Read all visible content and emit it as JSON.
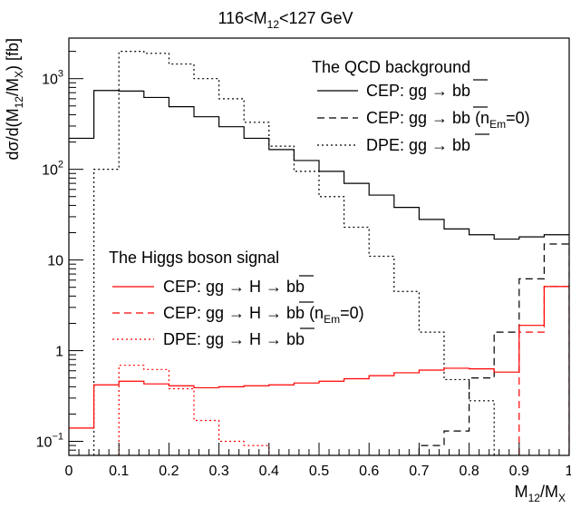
{
  "chart_data": {
    "type": "line",
    "title": "116<M12<127 GeV",
    "title_parts": {
      "base": "116<M",
      "sub": "12",
      "rest": "<127 GeV"
    },
    "xlabel": "M12/MX",
    "xlabel_parts": {
      "m": "M",
      "s1": "12",
      "slash": "/M",
      "s2": "X"
    },
    "ylabel": "dσ/d(M12/MX) [fb]",
    "ylabel_parts": {
      "a": "dσ/d(M",
      "s1": "12",
      "b": "/M",
      "s2": "X",
      "c": ") [fb]"
    },
    "xlim": [
      0,
      1
    ],
    "ylim": [
      0.07,
      2800
    ],
    "yscale": "log",
    "x_ticks": [
      "0",
      "0.1",
      "0.2",
      "0.3",
      "0.4",
      "0.5",
      "0.6",
      "0.7",
      "0.8",
      "0.9",
      "1"
    ],
    "bin_edges": [
      0,
      0.05,
      0.1,
      0.15,
      0.2,
      0.25,
      0.3,
      0.35,
      0.4,
      0.45,
      0.5,
      0.55,
      0.6,
      0.65,
      0.7,
      0.75,
      0.8,
      0.85,
      0.9,
      0.95,
      1
    ],
    "series": [
      {
        "group": "bkg",
        "label": "CEP: gg → bb̄",
        "color": "#000000",
        "dash": "solid",
        "values": [
          220,
          740,
          730,
          620,
          490,
          380,
          295,
          220,
          165,
          125,
          95,
          70,
          52,
          38,
          28,
          22,
          19,
          17,
          18,
          19
        ]
      },
      {
        "group": "bkg",
        "label": "CEP: gg → bb̄ (nEm=0)",
        "color": "#000000",
        "dash": "dashed",
        "values": [
          0,
          0,
          0,
          0,
          0,
          0,
          0,
          0,
          0,
          0,
          0,
          0,
          0,
          0,
          0.09,
          0.13,
          0.5,
          1.6,
          6.2,
          15
        ]
      },
      {
        "group": "bkg",
        "label": "DPE: gg → bb̄",
        "color": "#000000",
        "dash": "dotted",
        "values": [
          0,
          100,
          2000,
          1900,
          1450,
          1000,
          600,
          330,
          180,
          95,
          50,
          23,
          11,
          4.5,
          1.6,
          0.48,
          0.28,
          0,
          0,
          0
        ]
      },
      {
        "group": "sig",
        "label": "CEP: gg → H → bb̄",
        "color": "#ff0000",
        "dash": "solid",
        "values": [
          0.14,
          0.42,
          0.46,
          0.43,
          0.41,
          0.39,
          0.4,
          0.41,
          0.42,
          0.44,
          0.46,
          0.49,
          0.53,
          0.57,
          0.61,
          0.64,
          0.63,
          0.58,
          1.9,
          5.1
        ]
      },
      {
        "group": "sig",
        "label": "CEP: gg → H → bb̄ (nEm=0)",
        "color": "#ff0000",
        "dash": "dashed",
        "values": [
          0,
          0,
          0,
          0,
          0,
          0,
          0,
          0,
          0,
          0,
          0,
          0,
          0,
          0,
          0,
          0,
          0,
          0,
          1.6,
          5.1
        ]
      },
      {
        "group": "sig",
        "label": "DPE: gg → H → bb̄",
        "color": "#ff0000",
        "dash": "dotted",
        "values": [
          0,
          0,
          0.69,
          0.62,
          0.38,
          0.17,
          0.1,
          0.09,
          0,
          0,
          0,
          0,
          0,
          0,
          0,
          0,
          0,
          0,
          0,
          0
        ]
      }
    ],
    "legend_bkg": {
      "header": "The QCD background",
      "entries": [
        {
          "text": "CEP: gg → bb",
          "suffix": ""
        },
        {
          "text": "CEP: gg → bb",
          "suffix": "(n",
          "sub": "Em",
          "tail": "=0)"
        },
        {
          "text": "DPE: gg → bb",
          "suffix": ""
        }
      ]
    },
    "legend_sig": {
      "header": "The Higgs boson signal",
      "entries": [
        {
          "text": "CEP: gg → H → bb",
          "suffix": ""
        },
        {
          "text": "CEP: gg → H → bb",
          "suffix": "(n",
          "sub": "Em",
          "tail": "=0)"
        },
        {
          "text": "DPE: gg → H → bb",
          "suffix": ""
        }
      ]
    }
  }
}
